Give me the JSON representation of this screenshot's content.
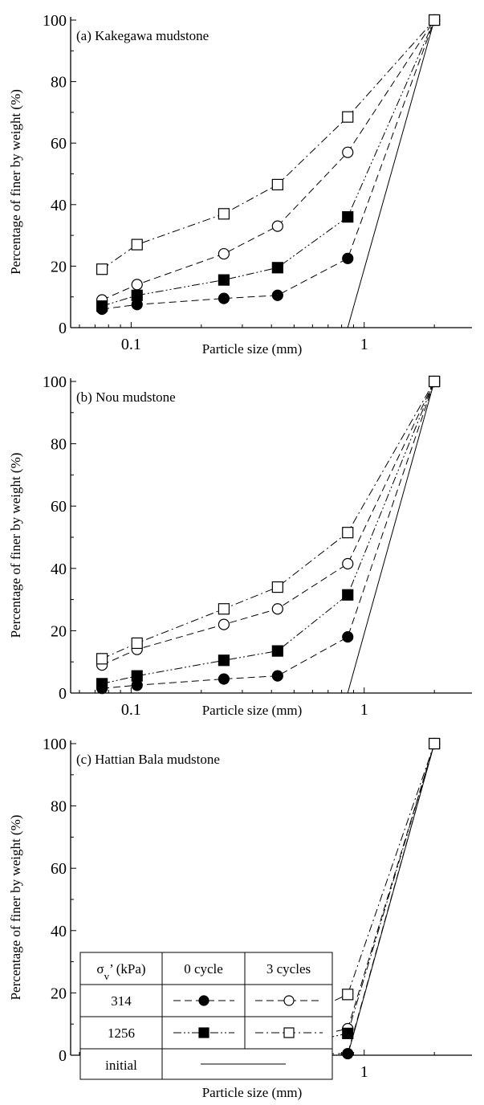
{
  "figure": {
    "xlabel": "Particle size (mm)",
    "ylabel": "Percentage of finer by weight (%)"
  },
  "legend": {
    "header": {
      "stress_html": "σ<tspan baseline-shift='sub' font-size='13'>v</tspan>’ (kPa)",
      "stress": "σv’ (kPa)",
      "col1": "0 cycle",
      "col2": "3 cycles"
    },
    "rows": [
      "314",
      "1256",
      "initial"
    ]
  },
  "chart_data": [
    {
      "type": "line",
      "title": "(a) Kakegawa mudstone",
      "xlabel": "Particle size (mm)",
      "ylabel": "Percentage of finer by weight (%)",
      "xscale": "log",
      "xlim": [
        0.055,
        2.9
      ],
      "ylim": [
        0,
        100
      ],
      "xticks": [
        0.1,
        1
      ],
      "yticks": [
        0,
        20,
        40,
        60,
        80,
        100
      ],
      "series": [
        {
          "name": "314 kPa, 0 cycle",
          "marker": "filled-circle",
          "dash": "dash",
          "x": [
            0.075,
            0.106,
            0.25,
            0.425,
            0.85,
            2.0
          ],
          "y": [
            6,
            7.5,
            9.5,
            10.5,
            22.5,
            100
          ]
        },
        {
          "name": "314 kPa, 3 cycles",
          "marker": "open-circle",
          "dash": "dash",
          "x": [
            0.075,
            0.106,
            0.25,
            0.425,
            0.85,
            2.0
          ],
          "y": [
            9,
            14,
            24,
            33,
            57,
            100
          ]
        },
        {
          "name": "1256 kPa, 0 cycle",
          "marker": "filled-square",
          "dash": "dashdotdot",
          "x": [
            0.075,
            0.106,
            0.25,
            0.425,
            0.85,
            2.0
          ],
          "y": [
            7,
            10.5,
            15.5,
            19.5,
            36,
            100
          ]
        },
        {
          "name": "1256 kPa, 3 cycles",
          "marker": "open-square",
          "dash": "dashdot",
          "x": [
            0.075,
            0.106,
            0.25,
            0.425,
            0.85,
            2.0
          ],
          "y": [
            19,
            27,
            37,
            46.5,
            68.5,
            100
          ]
        },
        {
          "name": "initial",
          "marker": "none",
          "dash": "solid",
          "x": [
            0.85,
            2.0
          ],
          "y": [
            0,
            100
          ]
        }
      ]
    },
    {
      "type": "line",
      "title": "(b) Nou mudstone",
      "xlabel": "Particle size (mm)",
      "ylabel": "Percentage of finer by weight (%)",
      "xscale": "log",
      "xlim": [
        0.055,
        2.9
      ],
      "ylim": [
        0,
        100
      ],
      "xticks": [
        0.1,
        1
      ],
      "yticks": [
        0,
        20,
        40,
        60,
        80,
        100
      ],
      "series": [
        {
          "name": "314 kPa, 0 cycle",
          "marker": "filled-circle",
          "dash": "dash",
          "x": [
            0.075,
            0.106,
            0.25,
            0.425,
            0.85,
            2.0
          ],
          "y": [
            1.5,
            2.5,
            4.5,
            5.5,
            18,
            100
          ]
        },
        {
          "name": "314 kPa, 3 cycles",
          "marker": "open-circle",
          "dash": "dash",
          "x": [
            0.075,
            0.106,
            0.25,
            0.425,
            0.85,
            2.0
          ],
          "y": [
            9,
            14,
            22,
            27,
            41.5,
            100
          ]
        },
        {
          "name": "1256 kPa, 0 cycle",
          "marker": "filled-square",
          "dash": "dashdotdot",
          "x": [
            0.075,
            0.106,
            0.25,
            0.425,
            0.85,
            2.0
          ],
          "y": [
            3,
            5.5,
            10.5,
            13.5,
            31.5,
            100
          ]
        },
        {
          "name": "1256 kPa, 3 cycles",
          "marker": "open-square",
          "dash": "dashdot",
          "x": [
            0.075,
            0.106,
            0.25,
            0.425,
            0.85,
            2.0
          ],
          "y": [
            11,
            16,
            27,
            34,
            51.5,
            100
          ]
        },
        {
          "name": "initial",
          "marker": "none",
          "dash": "solid",
          "x": [
            0.85,
            2.0
          ],
          "y": [
            0,
            100
          ]
        }
      ]
    },
    {
      "type": "line",
      "title": "(c) Hattian Bala mudstone",
      "xlabel": "Particle size (mm)",
      "ylabel": "Percentage of finer by weight (%)",
      "xscale": "log",
      "xlim": [
        0.055,
        2.9
      ],
      "ylim": [
        0,
        100
      ],
      "xticks": [
        0.1,
        1
      ],
      "yticks": [
        0,
        20,
        40,
        60,
        80,
        100
      ],
      "series": [
        {
          "name": "314 kPa, 0 cycle",
          "marker": "filled-circle",
          "dash": "dash",
          "x": [
            0.075,
            0.106,
            0.25,
            0.425,
            0.85,
            2.0
          ],
          "y": [
            0,
            0.2,
            0.5,
            0.5,
            0.5,
            100
          ]
        },
        {
          "name": "314 kPa, 3 cycles",
          "marker": "open-circle",
          "dash": "dash",
          "x": [
            0.075,
            0.106,
            0.25,
            0.425,
            0.85,
            2.0
          ],
          "y": [
            0.5,
            1,
            2,
            3.5,
            8.5,
            100
          ]
        },
        {
          "name": "1256 kPa, 0 cycle",
          "marker": "filled-square",
          "dash": "dashdotdot",
          "x": [
            0.075,
            0.106,
            0.25,
            0.425,
            0.85,
            2.0
          ],
          "y": [
            0,
            0.5,
            1,
            2,
            7,
            100
          ]
        },
        {
          "name": "1256 kPa, 3 cycles",
          "marker": "open-square",
          "dash": "dashdot",
          "x": [
            0.075,
            0.106,
            0.25,
            0.425,
            0.85,
            2.0
          ],
          "y": [
            1,
            2.5,
            5.5,
            9,
            19.5,
            100
          ]
        },
        {
          "name": "initial",
          "marker": "none",
          "dash": "solid",
          "x": [
            0.85,
            2.0
          ],
          "y": [
            0,
            100
          ]
        }
      ]
    }
  ]
}
